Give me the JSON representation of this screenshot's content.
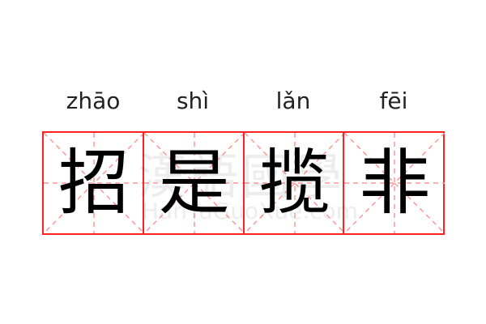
{
  "idiom": [
    {
      "pinyin": "zhāo",
      "char": "招"
    },
    {
      "pinyin": "shì",
      "char": "是"
    },
    {
      "pinyin": "lǎn",
      "char": "揽"
    },
    {
      "pinyin": "fēi",
      "char": "非"
    }
  ],
  "watermark": {
    "chars": "漢語國學",
    "url": "HanYuGuoXue.com"
  },
  "colors": {
    "grid": "#ff2222",
    "guide": "#ff9999"
  }
}
